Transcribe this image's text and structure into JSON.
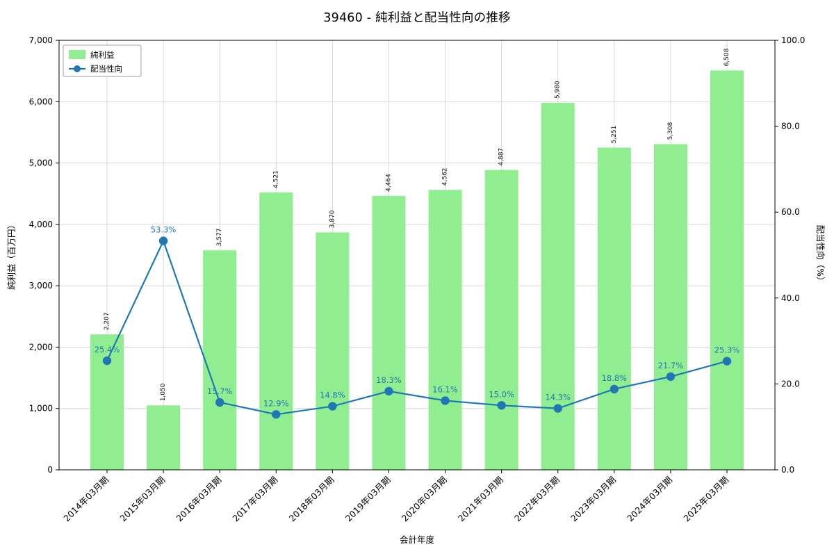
{
  "chart_data": {
    "type": "bar+line",
    "title": "39460 - 純利益と配当性向の推移",
    "xlabel": "会計年度",
    "ylabel_left": "純利益（百万円）",
    "ylabel_right": "配当性向（%）",
    "categories": [
      "2014年03月期",
      "2015年03月期",
      "2016年03月期",
      "2017年03月期",
      "2018年03月期",
      "2019年03月期",
      "2020年03月期",
      "2021年03月期",
      "2022年03月期",
      "2023年03月期",
      "2024年03月期",
      "2025年03月期"
    ],
    "series": [
      {
        "name": "純利益",
        "type": "bar",
        "axis": "left",
        "color": "#90ee90",
        "values": [
          2207,
          1050,
          3577,
          4521,
          3870,
          4464,
          4562,
          4887,
          5980,
          5251,
          5308,
          6508
        ],
        "labels": [
          "2,207",
          "1,050",
          "3,577",
          "4,521",
          "3,870",
          "4,464",
          "4,562",
          "4,887",
          "5,980",
          "5,251",
          "5,308",
          "6,508"
        ]
      },
      {
        "name": "配当性向",
        "type": "line",
        "axis": "right",
        "color": "#1f77b4",
        "label_color": "#2279b5",
        "values": [
          25.4,
          53.3,
          15.7,
          12.9,
          14.8,
          18.3,
          16.1,
          15.0,
          14.3,
          18.8,
          21.7,
          25.3
        ],
        "labels": [
          "25.4%",
          "53.3%",
          "15.7%",
          "12.9%",
          "14.8%",
          "18.3%",
          "16.1%",
          "15.0%",
          "14.3%",
          "18.8%",
          "21.7%",
          "25.3%"
        ]
      }
    ],
    "ylim_left": [
      0,
      7000
    ],
    "ylim_right": [
      0,
      100
    ],
    "ytick_values_left": [
      0,
      1000,
      2000,
      3000,
      4000,
      5000,
      6000,
      7000
    ],
    "yticks_left": [
      "0",
      "1,000",
      "2,000",
      "3,000",
      "4,000",
      "5,000",
      "6,000",
      "7,000"
    ],
    "ytick_values_right": [
      0,
      20,
      40,
      60,
      80,
      100
    ],
    "yticks_right": [
      "0.0",
      "20.0",
      "40.0",
      "60.0",
      "80.0",
      "100.0"
    ],
    "grid": true,
    "legend_position": "top-left",
    "colors": {
      "grid": "#cfcfcf",
      "spine": "#000000",
      "legend_border": "#9e9e9e"
    }
  }
}
